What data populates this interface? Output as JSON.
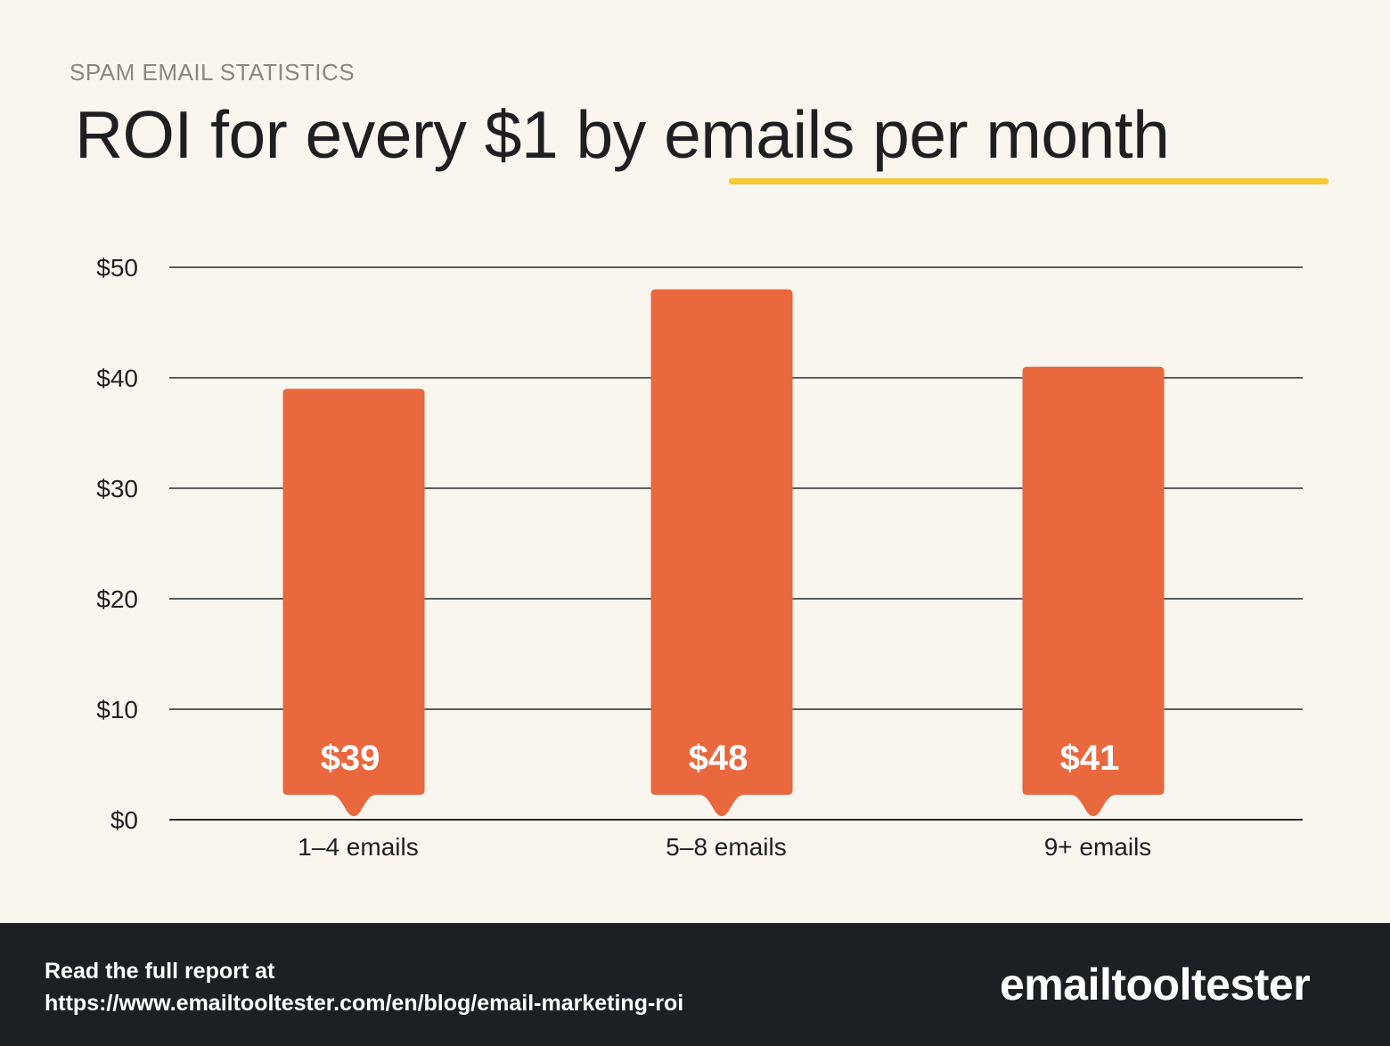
{
  "header": {
    "kicker": "SPAM EMAIL STATISTICS",
    "title_prefix": "ROI for every $1 by ",
    "title_highlight": "emails per month",
    "highlight_color": "#f8c936"
  },
  "chart_data": {
    "type": "bar",
    "categories": [
      "1–4 emails",
      "5–8 emails",
      "9+ emails"
    ],
    "values": [
      39,
      48,
      41
    ],
    "value_labels": [
      "$39",
      "$48",
      "$41"
    ],
    "yticks": [
      "$0",
      "$10",
      "$20",
      "$30",
      "$40",
      "$50"
    ],
    "ylim": [
      0,
      50
    ],
    "grid": true,
    "bar_color": "#e9683d",
    "title": "ROI for every $1 by emails per month",
    "xlabel": "",
    "ylabel": ""
  },
  "footer": {
    "line1": "Read the full report at",
    "line2": "https://www.emailtooltester.com/en/blog/email-marketing-roi",
    "brand": "emailtooltester"
  }
}
